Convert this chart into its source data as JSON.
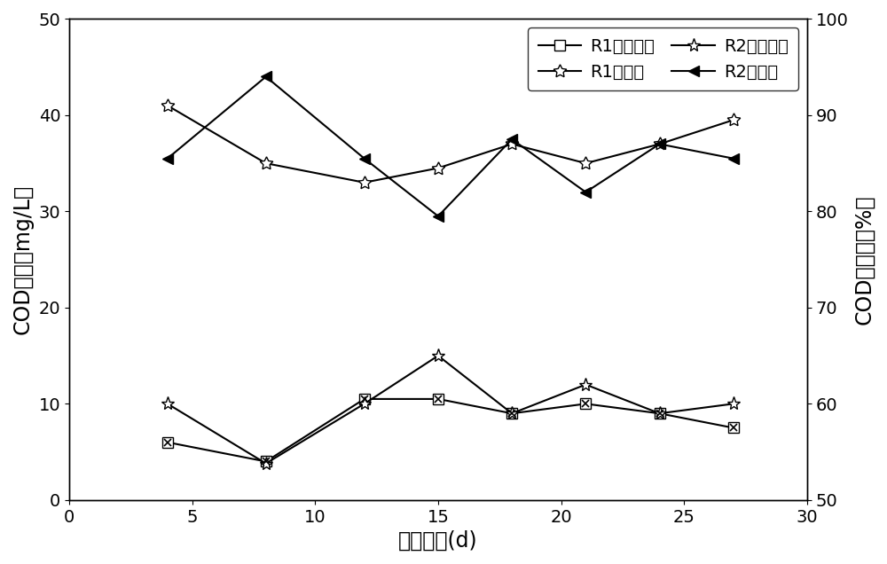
{
  "x": [
    4,
    8,
    12,
    15,
    18,
    21,
    24,
    27
  ],
  "R1_conc": [
    6,
    4,
    10.5,
    10.5,
    9,
    10,
    9,
    7.5
  ],
  "R2_conc": [
    10,
    3.8,
    10,
    15,
    9,
    12,
    9,
    10
  ],
  "R1_removal": [
    91,
    85,
    83,
    84.5,
    87,
    85,
    87,
    89.5
  ],
  "R2_removal": [
    85.5,
    94,
    85.5,
    79.5,
    87.5,
    82,
    87,
    85.5
  ],
  "xlim": [
    2,
    30
  ],
  "ylim_left": [
    0,
    50
  ],
  "ylim_right": [
    50,
    100
  ],
  "xticks": [
    0,
    5,
    10,
    15,
    20,
    25,
    30
  ],
  "yticks_left": [
    0,
    10,
    20,
    30,
    40,
    50
  ],
  "yticks_right": [
    50,
    60,
    70,
    80,
    90,
    100
  ],
  "xlabel": "启动时间(d)",
  "ylabel_left": "COD浓度（mg/L）",
  "ylabel_right": "COD去除率（%）",
  "legend_R1_conc": "R1出水浓度",
  "legend_R1_removal": "R1去除率",
  "legend_R2_conc": "R2出水浓度",
  "legend_R2_removal": "R2去除率",
  "line_color": "black",
  "fontsize_label": 17,
  "fontsize_tick": 14,
  "fontsize_legend": 14
}
